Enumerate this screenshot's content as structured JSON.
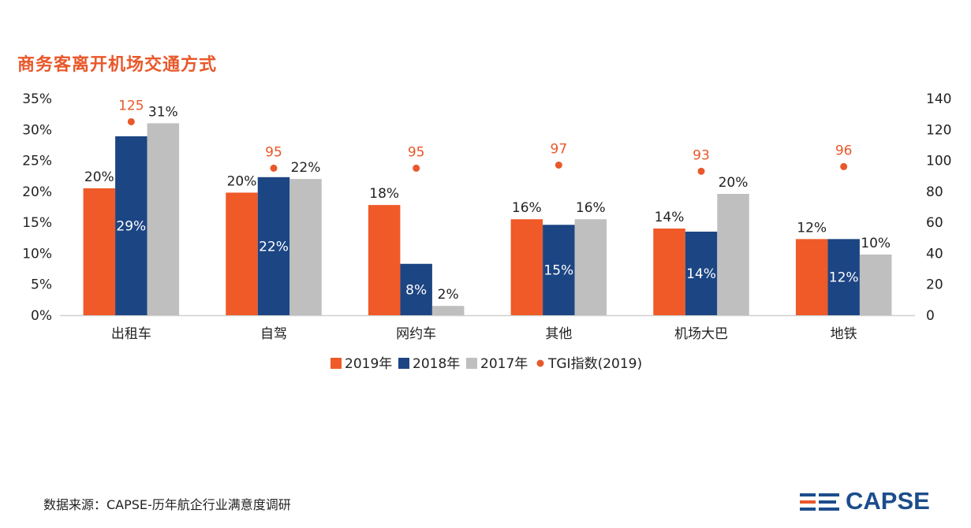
{
  "title": "商务客离开机场交通方式",
  "source": "数据来源：CAPSE-历年航企行业满意度调研",
  "logo_text": "CAPSE",
  "colors": {
    "s2019": "#ef5a28",
    "s2018": "#1c4583",
    "s2017": "#bfbfbf",
    "tgi": "#e8582a"
  },
  "chart_data": {
    "type": "bar",
    "categories": [
      "出租车",
      "自驾",
      "网约车",
      "其他",
      "机场大巴",
      "地铁"
    ],
    "series": [
      {
        "name": "2019年",
        "values": [
          20.5,
          19.8,
          17.8,
          15.5,
          14.0,
          12.3
        ],
        "labels": [
          "20%",
          "20%",
          "18%",
          "16%",
          "14%",
          "12%"
        ]
      },
      {
        "name": "2018年",
        "values": [
          28.9,
          22.3,
          8.3,
          14.6,
          13.5,
          12.3
        ],
        "labels": [
          "29%",
          "22%",
          "8%",
          "15%",
          "14%",
          "12%"
        ]
      },
      {
        "name": "2017年",
        "values": [
          31.0,
          22.0,
          1.5,
          15.5,
          19.6,
          9.8
        ],
        "labels": [
          "31%",
          "22%",
          "2%",
          "16%",
          "20%",
          "10%"
        ]
      }
    ],
    "tgi": {
      "name": "TGI指数(2019)",
      "values": [
        125,
        95,
        95,
        97,
        93,
        96
      ]
    },
    "left_axis": {
      "min": 0,
      "max": 35,
      "ticks": [
        "0%",
        "5%",
        "10%",
        "15%",
        "20%",
        "25%",
        "30%",
        "35%"
      ]
    },
    "right_axis": {
      "min": 0,
      "max": 140,
      "ticks": [
        "0",
        "20",
        "40",
        "60",
        "80",
        "100",
        "120",
        "140"
      ]
    },
    "legend_position": "bottom",
    "grid": false
  }
}
